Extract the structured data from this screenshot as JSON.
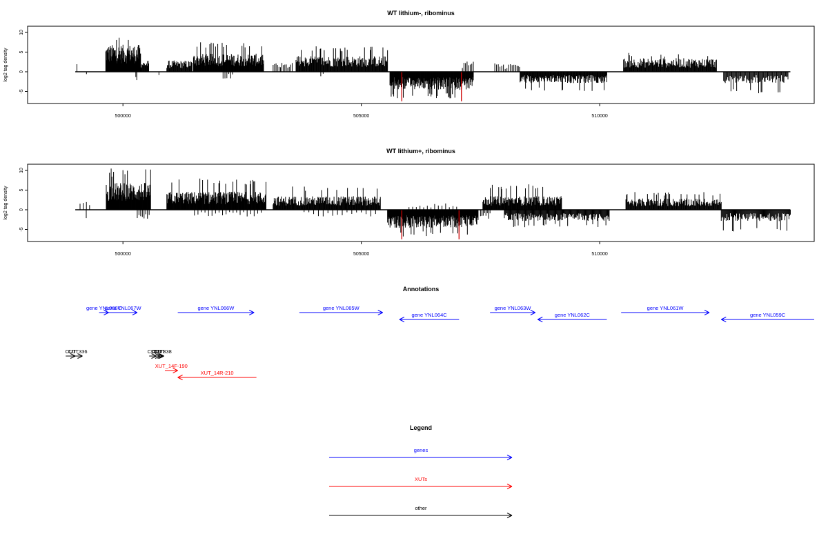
{
  "palette": {
    "gene": "#0000ff",
    "xut": "#ff0000",
    "other": "#000000",
    "highlight": "#cc0000",
    "signal": "#000000"
  },
  "chart_data": [
    {
      "type": "bar",
      "title": "WT lithium-, ribominus",
      "ylabel": "log2 tag density",
      "xlim": [
        498000,
        514500
      ],
      "ylim": [
        -8,
        12
      ],
      "xticks": [
        500000,
        505000,
        510000
      ],
      "xtick_labels": [
        "500000",
        "505000",
        "510000"
      ],
      "yticks": [
        -5,
        0,
        5,
        10
      ],
      "ytick_labels": [
        "-5",
        "0",
        "5",
        "10"
      ],
      "baseline_range": [
        499000,
        514000
      ],
      "highlight_positions": [
        505850,
        507100
      ],
      "highlight_value": -7.5,
      "segments": [
        {
          "start": 499030,
          "end": 499040,
          "strand": "+",
          "level": 2.2,
          "count": 1
        },
        {
          "start": 499230,
          "end": 499240,
          "strand": "-",
          "level": -1.0,
          "count": 1
        },
        {
          "start": 499640,
          "end": 500370,
          "strand": "+",
          "level": 6.0,
          "peak": 9.5,
          "count": 92
        },
        {
          "start": 500330,
          "end": 500540,
          "strand": "+",
          "level": 2.5,
          "count": 20
        },
        {
          "start": 500270,
          "end": 500290,
          "strand": "-",
          "level": -2.0,
          "count": 2
        },
        {
          "start": 500750,
          "end": 500760,
          "strand": "-",
          "level": -1.5,
          "count": 1
        },
        {
          "start": 500920,
          "end": 501450,
          "strand": "+",
          "level": 2.5,
          "count": 44
        },
        {
          "start": 501480,
          "end": 502950,
          "strand": "+",
          "level": 4.0,
          "peak": 7.5,
          "count": 160
        },
        {
          "start": 502100,
          "end": 502300,
          "strand": "-",
          "level": -1.5,
          "count": 6
        },
        {
          "start": 503150,
          "end": 503550,
          "strand": "+",
          "level": 2.0,
          "count": 14
        },
        {
          "start": 503630,
          "end": 505550,
          "strand": "+",
          "level": 3.5,
          "peak": 6.5,
          "count": 160
        },
        {
          "start": 504150,
          "end": 504200,
          "strand": "-",
          "level": -1.0,
          "count": 2
        },
        {
          "start": 505600,
          "end": 507350,
          "strand": "-",
          "level": -4.0,
          "peak": -6.8,
          "count": 200
        },
        {
          "start": 507120,
          "end": 507350,
          "strand": "+",
          "level": 2.5,
          "count": 8
        },
        {
          "start": 507800,
          "end": 508200,
          "strand": "+",
          "level": 2.0,
          "count": 12
        },
        {
          "start": 508240,
          "end": 508320,
          "strand": "+",
          "level": 2.0,
          "count": 4
        },
        {
          "start": 508330,
          "end": 510150,
          "strand": "-",
          "level": -2.5,
          "peak": -5.0,
          "count": 160
        },
        {
          "start": 510500,
          "end": 512450,
          "strand": "+",
          "level": 3.0,
          "peak": 4.8,
          "count": 160
        },
        {
          "start": 512600,
          "end": 513950,
          "strand": "-",
          "level": -2.5,
          "peak": -5.5,
          "count": 80
        }
      ]
    },
    {
      "type": "bar",
      "title": "WT lithium+, ribominus",
      "ylabel": "log2 tag density",
      "xlim": [
        498000,
        514500
      ],
      "ylim": [
        -8,
        12
      ],
      "xticks": [
        500000,
        505000,
        510000
      ],
      "xtick_labels": [
        "500000",
        "505000",
        "510000"
      ],
      "yticks": [
        -5,
        0,
        5,
        10
      ],
      "ytick_labels": [
        "-5",
        "0",
        "5",
        "10"
      ],
      "baseline_range": [
        499000,
        514000
      ],
      "highlight_positions": [
        505850,
        507050
      ],
      "highlight_value": -7.5,
      "segments": [
        {
          "start": 499100,
          "end": 499300,
          "strand": "+",
          "level": 2.0,
          "count": 4
        },
        {
          "start": 499220,
          "end": 499240,
          "strand": "-",
          "level": -2.5,
          "count": 1
        },
        {
          "start": 499650,
          "end": 500580,
          "strand": "+",
          "level": 6.0,
          "peak": 10.5,
          "count": 110
        },
        {
          "start": 500300,
          "end": 500550,
          "strand": "-",
          "level": -2.0,
          "count": 8
        },
        {
          "start": 500920,
          "end": 503000,
          "strand": "+",
          "level": 4.0,
          "peak": 8.0,
          "count": 220
        },
        {
          "start": 501500,
          "end": 502900,
          "strand": "-",
          "level": -1.5,
          "count": 20
        },
        {
          "start": 503150,
          "end": 505400,
          "strand": "+",
          "level": 3.0,
          "peak": 6.0,
          "count": 200
        },
        {
          "start": 503800,
          "end": 505300,
          "strand": "-",
          "level": -1.5,
          "count": 16
        },
        {
          "start": 505550,
          "end": 507450,
          "strand": "-",
          "level": -4.0,
          "peak": -6.8,
          "count": 220
        },
        {
          "start": 506000,
          "end": 507000,
          "strand": "+",
          "level": 1.5,
          "count": 14
        },
        {
          "start": 507500,
          "end": 507700,
          "strand": "-",
          "level": -2.0,
          "count": 8
        },
        {
          "start": 507550,
          "end": 509200,
          "strand": "+",
          "level": 3.0,
          "peak": 6.5,
          "count": 160
        },
        {
          "start": 508000,
          "end": 510200,
          "strand": "-",
          "level": -2.5,
          "peak": -4.5,
          "count": 160
        },
        {
          "start": 510550,
          "end": 512550,
          "strand": "+",
          "level": 2.5,
          "peak": 4.5,
          "count": 160
        },
        {
          "start": 512550,
          "end": 514000,
          "strand": "-",
          "level": -2.5,
          "peak": -5.5,
          "count": 100
        }
      ]
    }
  ],
  "annotations": {
    "title": "Annotations",
    "xlim": [
      498000,
      514500
    ],
    "features": [
      {
        "label": "gene YNL068C",
        "start": 499500,
        "end": 499700,
        "strand": "+",
        "type": "gene",
        "row": 0
      },
      {
        "label": "gene YNL067W",
        "start": 499700,
        "end": 500300,
        "strand": "+",
        "type": "gene",
        "row": 0
      },
      {
        "label": "gene YNL066W",
        "start": 501150,
        "end": 502750,
        "strand": "+",
        "type": "gene",
        "row": 0
      },
      {
        "label": "gene YNL065W",
        "start": 503700,
        "end": 505450,
        "strand": "+",
        "type": "gene",
        "row": 0
      },
      {
        "label": "gene YNL064C",
        "start": 505800,
        "end": 507050,
        "strand": "-",
        "type": "gene",
        "row": 1
      },
      {
        "label": "gene YNL063W",
        "start": 507700,
        "end": 508650,
        "strand": "+",
        "type": "gene",
        "row": 0
      },
      {
        "label": "gene YNL062C",
        "start": 508700,
        "end": 510150,
        "strand": "-",
        "type": "gene",
        "row": 1
      },
      {
        "label": "gene YNL061W",
        "start": 510450,
        "end": 512300,
        "strand": "+",
        "type": "gene",
        "row": 0
      },
      {
        "label": "gene YNL059C",
        "start": 512550,
        "end": 514500,
        "strand": "-",
        "type": "gene",
        "row": 1
      },
      {
        "label": "CUT",
        "start": 498800,
        "end": 499000,
        "strand": "+",
        "type": "other",
        "row": 2
      },
      {
        "label": "CUT336",
        "start": 498950,
        "end": 499150,
        "strand": "+",
        "type": "other",
        "row": 2
      },
      {
        "label": "CUT",
        "start": 500550,
        "end": 500700,
        "strand": "+",
        "type": "other",
        "row": 2
      },
      {
        "label": "CUT",
        "start": 500630,
        "end": 500780,
        "strand": "+",
        "type": "other",
        "row": 2
      },
      {
        "label": "CUT",
        "start": 500700,
        "end": 500830,
        "strand": "+",
        "type": "other",
        "row": 2
      },
      {
        "label": "CUT338",
        "start": 500780,
        "end": 500860,
        "strand": "+",
        "type": "other",
        "row": 2
      },
      {
        "label": "XUT_14F-190",
        "start": 500880,
        "end": 501150,
        "strand": "+",
        "type": "xut",
        "row": 3
      },
      {
        "label": "XUT_14R-210",
        "start": 501150,
        "end": 502800,
        "strand": "-",
        "type": "xut",
        "row": 4
      }
    ]
  },
  "legend": {
    "title": "Legend",
    "items": [
      {
        "label": "genes",
        "type": "gene"
      },
      {
        "label": "XUTs",
        "type": "xut"
      },
      {
        "label": "other",
        "type": "other"
      }
    ]
  }
}
